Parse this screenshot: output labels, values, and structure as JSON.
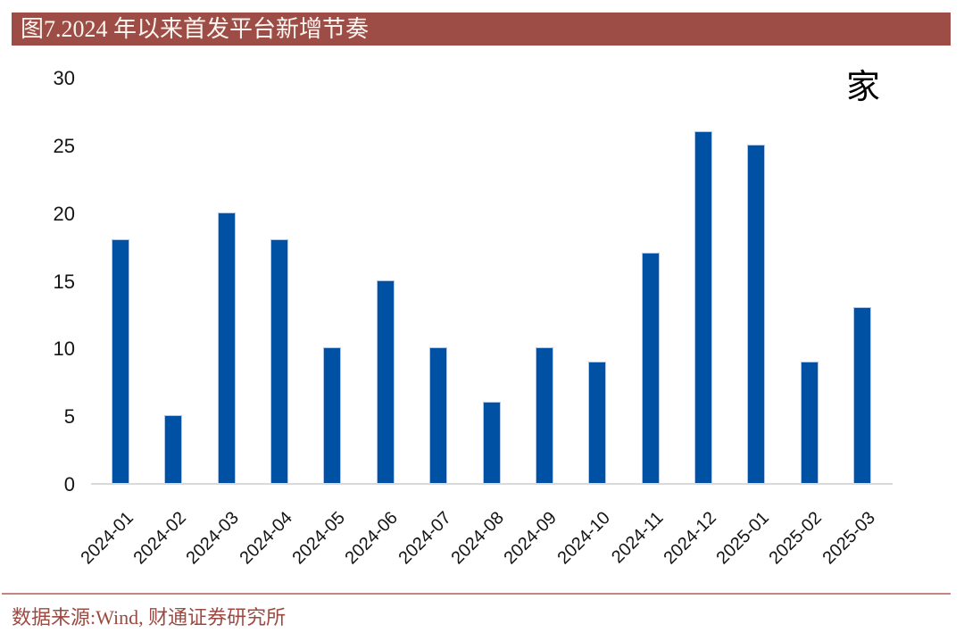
{
  "header": {
    "title": "图7.2024 年以来首发平台新增节奏"
  },
  "chart_data": {
    "type": "bar",
    "title": "图7.2024 年以来首发平台新增节奏",
    "unit_label": "家",
    "categories": [
      "2024-01",
      "2024-02",
      "2024-03",
      "2024-04",
      "2024-05",
      "2024-06",
      "2024-07",
      "2024-08",
      "2024-09",
      "2024-10",
      "2024-11",
      "2024-12",
      "2025-01",
      "2025-02",
      "2025-03"
    ],
    "values": [
      18,
      5,
      20,
      18,
      10,
      15,
      10,
      6,
      10,
      9,
      17,
      26,
      25,
      9,
      13
    ],
    "xlabel": "",
    "ylabel": "",
    "ylim": [
      0,
      30
    ],
    "y_ticks": [
      0,
      5,
      10,
      15,
      20,
      25,
      30
    ],
    "grid": false,
    "legend": "none",
    "bar_color": "#0051A3"
  },
  "footer": {
    "source_text": "数据来源:Wind, 财通证券研究所"
  },
  "colors": {
    "title_bar_bg": "#9E4C46",
    "title_text": "#FBF6F0",
    "bar_blue": "#0051A3",
    "axis_line": "#D9D9D9",
    "tick_text": "#141414",
    "divider_line": "#C5867F",
    "source_text": "#9C4A42"
  }
}
